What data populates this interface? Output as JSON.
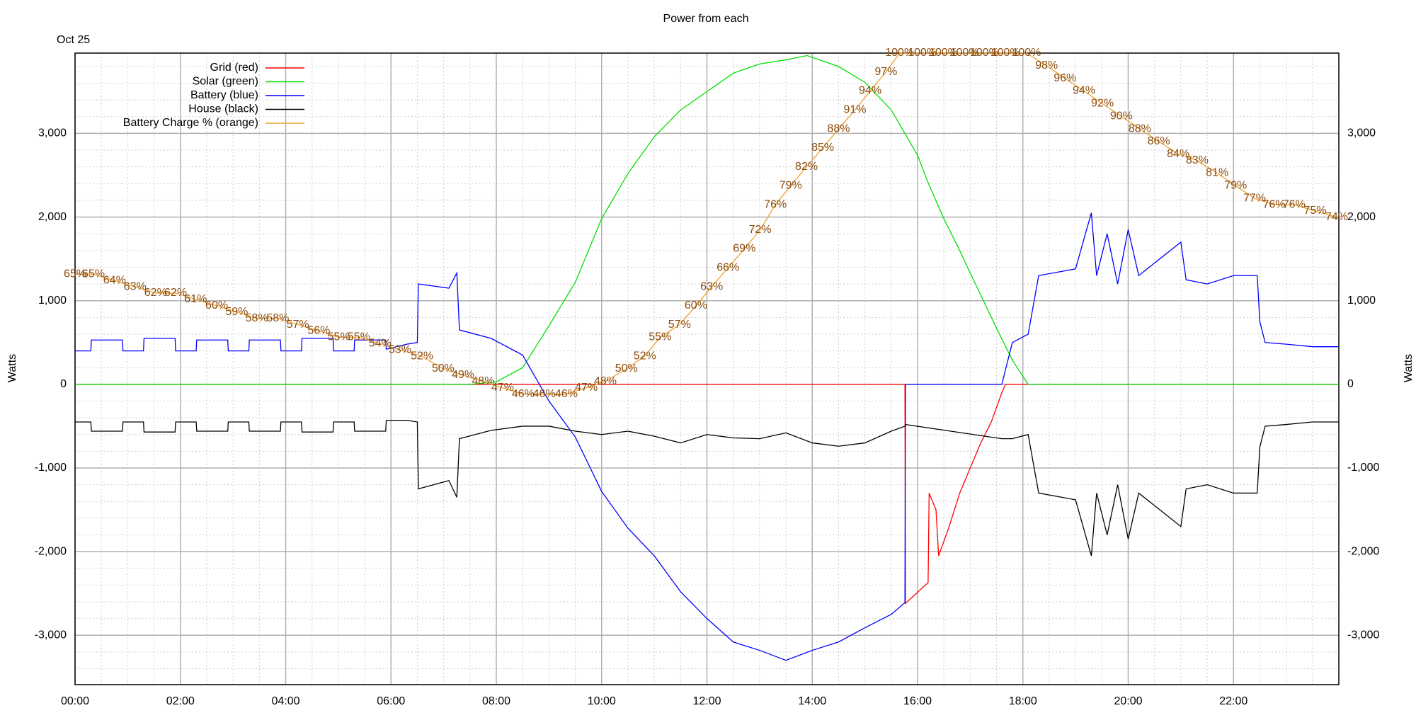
{
  "chart_data": {
    "type": "line",
    "title": "Power from each",
    "subtitle": "Oct 25",
    "ylabel": "Watts",
    "xlim": [
      0,
      24
    ],
    "xticks": [
      {
        "value": 0,
        "label": "00:00"
      },
      {
        "value": 2,
        "label": "02:00"
      },
      {
        "value": 4,
        "label": "04:00"
      },
      {
        "value": 6,
        "label": "06:00"
      },
      {
        "value": 8,
        "label": "08:00"
      },
      {
        "value": 10,
        "label": "10:00"
      },
      {
        "value": 12,
        "label": "12:00"
      },
      {
        "value": 14,
        "label": "14:00"
      },
      {
        "value": 16,
        "label": "16:00"
      },
      {
        "value": 18,
        "label": "18:00"
      },
      {
        "value": 20,
        "label": "20:00"
      },
      {
        "value": 22,
        "label": "22:00"
      }
    ],
    "ylim": [
      -3590,
      3960
    ],
    "yticks": [
      {
        "value": -3000,
        "label": "-3,000"
      },
      {
        "value": -2000,
        "label": "-2,000"
      },
      {
        "value": -1000,
        "label": "-1,000"
      },
      0,
      {
        "value": 1000,
        "label": "1,000"
      },
      {
        "value": 2000,
        "label": "2,000"
      },
      {
        "value": 3000,
        "label": "3,000"
      }
    ],
    "y2lim": [
      0,
      100
    ],
    "grid": true,
    "legend": "upper left",
    "series": [
      {
        "name": "Grid (red)",
        "color": "#ff0000",
        "x": [
          0,
          15.76,
          15.77,
          16.2,
          16.22,
          16.35,
          16.4,
          16.6,
          16.8,
          17,
          17.2,
          17.4,
          17.6,
          17.67,
          24
        ],
        "values": [
          0,
          0,
          -2620,
          -2370,
          -1300,
          -1500,
          -2050,
          -1700,
          -1300,
          -1000,
          -700,
          -450,
          -100,
          0,
          0
        ]
      },
      {
        "name": "Solar (green)",
        "color": "#00e000",
        "x": [
          0,
          7.5,
          8,
          8.5,
          9,
          9.5,
          10,
          10.5,
          11,
          11.5,
          12,
          12.5,
          13,
          13.5,
          13.9,
          14.5,
          15,
          15.5,
          16,
          16.2,
          16.5,
          16.8,
          17,
          17.5,
          17.8,
          18.1,
          24
        ],
        "values": [
          0,
          0,
          30,
          200,
          700,
          1220,
          1980,
          2520,
          2960,
          3280,
          3500,
          3720,
          3830,
          3880,
          3930,
          3800,
          3610,
          3280,
          2740,
          2410,
          1980,
          1600,
          1330,
          670,
          290,
          0,
          0
        ]
      },
      {
        "name": "Battery (blue)",
        "color": "#0000ff",
        "x": [
          0,
          0.3,
          0.31,
          0.9,
          0.91,
          1.3,
          1.31,
          1.9,
          1.91,
          2.3,
          2.31,
          2.9,
          2.91,
          3.3,
          3.31,
          3.9,
          3.91,
          4.3,
          4.31,
          4.9,
          4.91,
          5.3,
          5.31,
          5.9,
          5.91,
          6.3,
          6.5,
          6.52,
          7.1,
          7.25,
          7.3,
          7.9,
          8.5,
          9,
          9.5,
          10,
          10.5,
          11,
          11.5,
          12,
          12.5,
          13,
          13.5,
          14,
          14.5,
          15,
          15.5,
          15.76,
          15.77,
          17.6,
          17.8,
          18.1,
          18.3,
          19,
          19.3,
          19.4,
          19.6,
          19.8,
          20,
          20.2,
          20.5,
          21,
          21.1,
          21.5,
          22,
          22.45,
          22.5,
          22.6,
          23,
          23.5,
          24
        ],
        "values": [
          400,
          400,
          530,
          530,
          400,
          400,
          550,
          550,
          400,
          400,
          530,
          530,
          400,
          400,
          530,
          530,
          400,
          400,
          550,
          550,
          400,
          400,
          530,
          530,
          420,
          480,
          500,
          1200,
          1150,
          1330,
          650,
          550,
          350,
          -200,
          -630,
          -1280,
          -1720,
          -2050,
          -2480,
          -2800,
          -3080,
          -3180,
          -3300,
          -3180,
          -3080,
          -2910,
          -2750,
          -2610,
          0,
          0,
          500,
          600,
          1300,
          1380,
          2050,
          1300,
          1800,
          1200,
          1850,
          1300,
          1450,
          1700,
          1250,
          1200,
          1300,
          1300,
          750,
          500,
          480,
          450,
          450
        ]
      },
      {
        "name": "House (black)",
        "color": "#000000",
        "x": [
          0,
          0.3,
          0.31,
          0.9,
          0.91,
          1.3,
          1.31,
          1.9,
          1.91,
          2.3,
          2.31,
          2.9,
          2.91,
          3.3,
          3.31,
          3.9,
          3.91,
          4.3,
          4.31,
          4.9,
          4.91,
          5.3,
          5.31,
          5.9,
          5.91,
          6.3,
          6.5,
          6.52,
          7.1,
          7.25,
          7.3,
          7.9,
          8.5,
          9,
          9.5,
          10,
          10.5,
          11,
          11.5,
          12,
          12.5,
          13,
          13.5,
          14,
          14.5,
          15,
          15.5,
          15.76,
          15.77,
          17.6,
          17.8,
          18.1,
          18.3,
          19,
          19.3,
          19.4,
          19.6,
          19.8,
          20,
          20.2,
          20.5,
          21,
          21.1,
          21.5,
          22,
          22.45,
          22.5,
          22.6,
          23,
          23.5,
          24
        ],
        "values": [
          -450,
          -450,
          -560,
          -560,
          -450,
          -450,
          -570,
          -570,
          -450,
          -450,
          -560,
          -560,
          -450,
          -450,
          -560,
          -560,
          -450,
          -450,
          -570,
          -570,
          -450,
          -450,
          -560,
          -560,
          -430,
          -430,
          -450,
          -1250,
          -1150,
          -1350,
          -650,
          -550,
          -500,
          -500,
          -560,
          -600,
          -560,
          -620,
          -700,
          -600,
          -640,
          -650,
          -580,
          -700,
          -740,
          -700,
          -560,
          -500,
          -480,
          -650,
          -650,
          -600,
          -1300,
          -1380,
          -2050,
          -1300,
          -1800,
          -1200,
          -1850,
          -1300,
          -1450,
          -1700,
          -1250,
          -1200,
          -1300,
          -1300,
          -750,
          -500,
          -480,
          -450,
          -450
        ]
      },
      {
        "name": "Battery Charge % (orange)",
        "color": "#f0a030",
        "label_color": "#8b4a0a",
        "axis": "y2",
        "x": [
          0,
          0.35,
          0.75,
          1.14,
          1.53,
          1.91,
          2.29,
          2.69,
          3.07,
          3.45,
          3.85,
          4.23,
          4.63,
          5.01,
          5.39,
          5.79,
          6.17,
          6.59,
          6.99,
          7.37,
          7.75,
          8.12,
          8.51,
          8.91,
          9.33,
          9.71,
          10.07,
          10.47,
          10.82,
          11.11,
          11.48,
          11.79,
          12.09,
          12.4,
          12.71,
          13.01,
          13.3,
          13.59,
          13.89,
          14.2,
          14.5,
          14.81,
          15.1,
          15.4,
          15.66,
          16.09,
          16.49,
          16.89,
          17.27,
          17.67,
          18.07,
          18.45,
          18.8,
          19.16,
          19.51,
          19.87,
          20.22,
          20.58,
          20.95,
          21.31,
          21.69,
          22.04,
          22.4,
          22.77,
          23.15,
          23.55,
          23.96
        ],
        "values": [
          65,
          65,
          64,
          63,
          62,
          62,
          61,
          60,
          59,
          58,
          58,
          57,
          56,
          55,
          55,
          54,
          53,
          52,
          50,
          49,
          48,
          47,
          46,
          46,
          46,
          47,
          48,
          50,
          52,
          55,
          57,
          60,
          63,
          66,
          69,
          72,
          76,
          79,
          82,
          85,
          88,
          91,
          94,
          97,
          100,
          100,
          100,
          100,
          100,
          100,
          100,
          98,
          96,
          94,
          92,
          90,
          88,
          86,
          84,
          83,
          81,
          79,
          77,
          76,
          76,
          75,
          74
        ],
        "value_labels": [
          "65%",
          "65%",
          "64%",
          "63%",
          "62%",
          "62%",
          "61%",
          "60%",
          "59%",
          "58%",
          "58%",
          "57%",
          "56%",
          "55%",
          "55%",
          "54%",
          "53%",
          "52%",
          "50%",
          "49%",
          "48%",
          "47%",
          "46%",
          "46%",
          "46%",
          "47%",
          "48%",
          "50%",
          "52%",
          "55%",
          "57%",
          "60%",
          "63%",
          "66%",
          "69%",
          "72%",
          "76%",
          "79%",
          "82%",
          "85%",
          "88%",
          "91%",
          "94%",
          "97%",
          "100%",
          "100%",
          "100%",
          "100%",
          "100%",
          "100%",
          "100%",
          "98%",
          "96%",
          "94%",
          "92%",
          "90%",
          "88%",
          "86%",
          "84%",
          "83%",
          "81%",
          "79%",
          "77%",
          "76%",
          "76%",
          "75%",
          "74%"
        ]
      }
    ]
  }
}
